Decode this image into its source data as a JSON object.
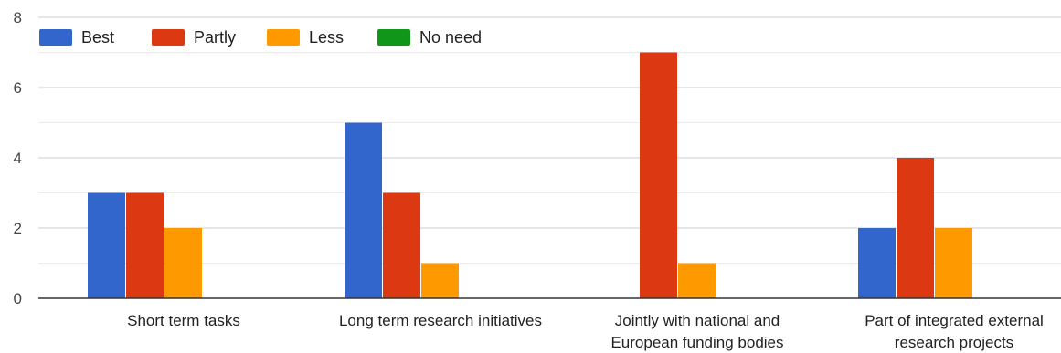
{
  "chart_data": {
    "type": "bar",
    "categories": [
      "Short term tasks",
      "Long term research initiatives",
      "Jointly with national and European funding bodies",
      "Part of integrated external research projects"
    ],
    "category_label_lines": [
      [
        "Short term tasks"
      ],
      [
        "Long term research initiatives"
      ],
      [
        "Jointly with national and",
        "European funding bodies"
      ],
      [
        "Part of integrated external",
        "research projects"
      ]
    ],
    "series": [
      {
        "name": "Best",
        "color": "#3366cc",
        "values": [
          3,
          5,
          0,
          2
        ]
      },
      {
        "name": "Partly",
        "color": "#dc3912",
        "values": [
          3,
          3,
          7,
          4
        ]
      },
      {
        "name": "Less",
        "color": "#ff9900",
        "values": [
          2,
          1,
          1,
          2
        ]
      },
      {
        "name": "No need",
        "color": "#109618",
        "values": [
          0,
          0,
          0,
          0
        ]
      }
    ],
    "yticks": [
      0,
      2,
      4,
      6,
      8
    ],
    "ylim": [
      0,
      8
    ],
    "grid": true,
    "legend_position": "top-left",
    "title": "",
    "xlabel": "",
    "ylabel": ""
  }
}
